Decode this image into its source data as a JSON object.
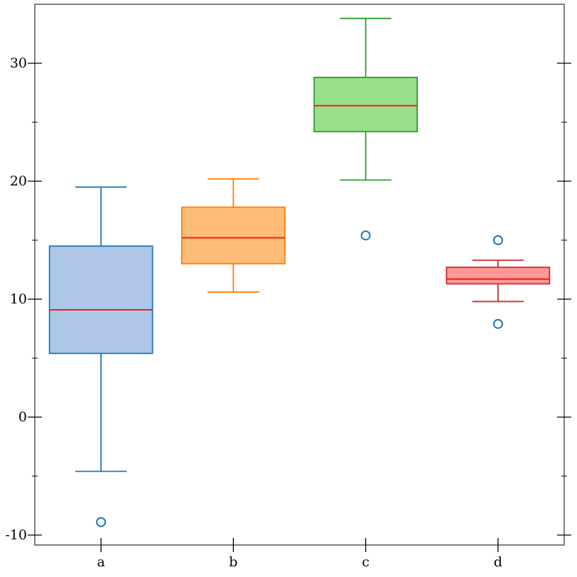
{
  "chart_data": {
    "type": "box",
    "title": "",
    "xlabel": "",
    "ylabel": "",
    "ylim": [
      -11,
      35
    ],
    "yticks_major": [
      -10,
      0,
      10,
      20,
      30
    ],
    "yticks_minor": [
      -5,
      5,
      15,
      25
    ],
    "grid": false,
    "categories": [
      "a",
      "b",
      "c",
      "d"
    ],
    "boxes": [
      {
        "category": "a",
        "whisker_low": -4.6,
        "q1": 5.4,
        "median": 9.1,
        "q3": 14.5,
        "whisker_high": 19.5,
        "outliers": [
          -8.9
        ],
        "fill": "#aec7e8",
        "stroke": "#1f77b4"
      },
      {
        "category": "b",
        "whisker_low": 10.6,
        "q1": 13.0,
        "median": 15.2,
        "q3": 17.8,
        "whisker_high": 20.2,
        "outliers": [],
        "fill": "#ffbb78",
        "stroke": "#ff7f0e"
      },
      {
        "category": "c",
        "whisker_low": 20.1,
        "q1": 24.2,
        "median": 26.4,
        "q3": 28.8,
        "whisker_high": 33.8,
        "outliers": [
          15.4
        ],
        "fill": "#98df8a",
        "stroke": "#2ca02c"
      },
      {
        "category": "d",
        "whisker_low": 9.8,
        "q1": 11.3,
        "median": 11.7,
        "q3": 12.7,
        "whisker_high": 13.3,
        "outliers": [
          15.0,
          7.9
        ],
        "fill": "#ff9896",
        "stroke": "#d62728"
      }
    ],
    "median_color": "#e8251a"
  }
}
